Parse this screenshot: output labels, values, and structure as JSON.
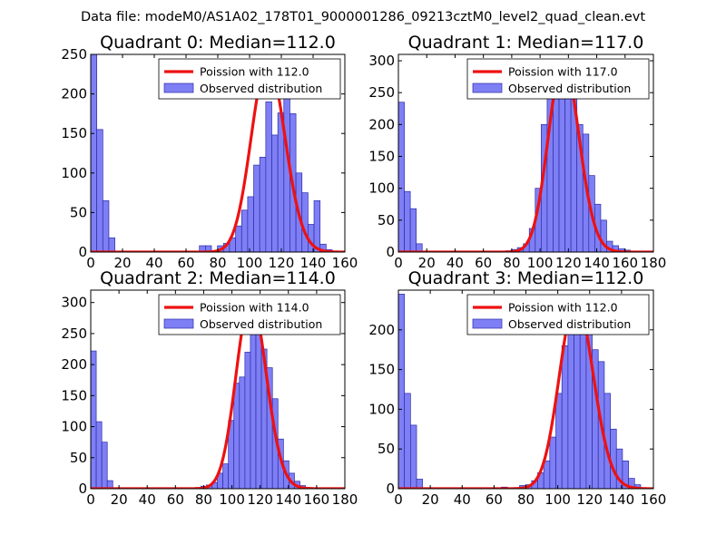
{
  "suptitle": "Data file: modeM0/AS1A02_178T01_9000001286_09213cztM0_level2_quad_clean.evt",
  "colors": {
    "bar_fill": "#7f7ff5",
    "bar_edge": "#2b2ba8",
    "curve": "#ee1111",
    "frame": "#000000"
  },
  "chart_data": [
    {
      "type": "bar",
      "title": "Quadrant 0: Median=112.0",
      "xlim": [
        0,
        160
      ],
      "ylim": [
        0,
        250
      ],
      "xticks": [
        0,
        20,
        40,
        60,
        80,
        100,
        120,
        140,
        160
      ],
      "yticks": [
        0,
        50,
        100,
        150,
        200,
        250
      ],
      "bin_width": 3.8,
      "bins": [
        {
          "x": 0,
          "y": 250
        },
        {
          "x": 3.8,
          "y": 155
        },
        {
          "x": 7.6,
          "y": 65
        },
        {
          "x": 11.4,
          "y": 18
        },
        {
          "x": 68.4,
          "y": 8
        },
        {
          "x": 72.2,
          "y": 8
        },
        {
          "x": 79.8,
          "y": 8
        },
        {
          "x": 83.6,
          "y": 11
        },
        {
          "x": 87.4,
          "y": 18
        },
        {
          "x": 91.2,
          "y": 33
        },
        {
          "x": 95,
          "y": 53
        },
        {
          "x": 98.8,
          "y": 70
        },
        {
          "x": 102.6,
          "y": 110
        },
        {
          "x": 106.4,
          "y": 120
        },
        {
          "x": 110.2,
          "y": 190
        },
        {
          "x": 114,
          "y": 148
        },
        {
          "x": 117.8,
          "y": 176
        },
        {
          "x": 121.6,
          "y": 200
        },
        {
          "x": 125.4,
          "y": 175
        },
        {
          "x": 129.2,
          "y": 100
        },
        {
          "x": 133,
          "y": 75
        },
        {
          "x": 136.8,
          "y": 35
        },
        {
          "x": 140.6,
          "y": 65
        },
        {
          "x": 144.4,
          "y": 10
        },
        {
          "x": 148.2,
          "y": 3
        }
      ],
      "poisson": {
        "mean": 112.0,
        "peak": 241
      },
      "legend": {
        "line_label": "Poission with 112.0",
        "bar_label": "Observed distribution",
        "position": "top-right"
      }
    },
    {
      "type": "bar",
      "title": "Quadrant 1: Median=117.0",
      "xlim": [
        0,
        180
      ],
      "ylim": [
        0,
        310
      ],
      "xticks": [
        0,
        20,
        40,
        60,
        80,
        100,
        120,
        140,
        160,
        180
      ],
      "yticks": [
        0,
        50,
        100,
        150,
        200,
        250,
        300
      ],
      "bin_width": 4.2,
      "bins": [
        {
          "x": 0,
          "y": 235
        },
        {
          "x": 4.2,
          "y": 95
        },
        {
          "x": 8.4,
          "y": 68
        },
        {
          "x": 12.6,
          "y": 13
        },
        {
          "x": 75.6,
          "y": 2
        },
        {
          "x": 79.8,
          "y": 4
        },
        {
          "x": 84,
          "y": 7
        },
        {
          "x": 88.2,
          "y": 13
        },
        {
          "x": 92.4,
          "y": 37
        },
        {
          "x": 96.6,
          "y": 100
        },
        {
          "x": 100.8,
          "y": 200
        },
        {
          "x": 105,
          "y": 250
        },
        {
          "x": 109.2,
          "y": 270
        },
        {
          "x": 113.4,
          "y": 300
        },
        {
          "x": 117.6,
          "y": 290
        },
        {
          "x": 121.8,
          "y": 265
        },
        {
          "x": 126,
          "y": 200
        },
        {
          "x": 130.2,
          "y": 185
        },
        {
          "x": 134.4,
          "y": 120
        },
        {
          "x": 138.6,
          "y": 75
        },
        {
          "x": 142.8,
          "y": 50
        },
        {
          "x": 147,
          "y": 17
        },
        {
          "x": 151.2,
          "y": 10
        },
        {
          "x": 155.4,
          "y": 5
        },
        {
          "x": 159.6,
          "y": 3
        }
      ],
      "poisson": {
        "mean": 117.0,
        "peak": 300
      },
      "legend": {
        "line_label": "Poission with 117.0",
        "bar_label": "Observed distribution",
        "position": "top-right"
      }
    },
    {
      "type": "bar",
      "title": "Quadrant 2: Median=114.0",
      "xlim": [
        0,
        180
      ],
      "ylim": [
        0,
        320
      ],
      "xticks": [
        0,
        20,
        40,
        60,
        80,
        100,
        120,
        140,
        160,
        180
      ],
      "yticks": [
        0,
        50,
        100,
        150,
        200,
        250,
        300
      ],
      "bin_width": 3.9,
      "bins": [
        {
          "x": 0,
          "y": 222
        },
        {
          "x": 3.9,
          "y": 108
        },
        {
          "x": 7.8,
          "y": 75
        },
        {
          "x": 11.7,
          "y": 13
        },
        {
          "x": 74.1,
          "y": 2
        },
        {
          "x": 78,
          "y": 4
        },
        {
          "x": 81.9,
          "y": 6
        },
        {
          "x": 85.8,
          "y": 10
        },
        {
          "x": 89.7,
          "y": 25
        },
        {
          "x": 93.6,
          "y": 40
        },
        {
          "x": 97.5,
          "y": 110
        },
        {
          "x": 101.4,
          "y": 170
        },
        {
          "x": 105.3,
          "y": 180
        },
        {
          "x": 109.2,
          "y": 220
        },
        {
          "x": 113.1,
          "y": 310
        },
        {
          "x": 117,
          "y": 265
        },
        {
          "x": 120.9,
          "y": 225
        },
        {
          "x": 124.8,
          "y": 195
        },
        {
          "x": 128.7,
          "y": 145
        },
        {
          "x": 132.6,
          "y": 80
        },
        {
          "x": 136.5,
          "y": 45
        },
        {
          "x": 140.4,
          "y": 25
        },
        {
          "x": 144.3,
          "y": 12
        },
        {
          "x": 148.2,
          "y": 5
        },
        {
          "x": 152.1,
          "y": 2
        }
      ],
      "poisson": {
        "mean": 114.0,
        "peak": 305
      },
      "legend": {
        "line_label": "Poission with 114.0",
        "bar_label": "Observed distribution",
        "position": "top-right"
      }
    },
    {
      "type": "bar",
      "title": "Quadrant 3: Median=112.0",
      "xlim": [
        0,
        160
      ],
      "ylim": [
        0,
        250
      ],
      "xticks": [
        0,
        20,
        40,
        60,
        80,
        100,
        120,
        140,
        160
      ],
      "yticks": [
        0,
        50,
        100,
        150,
        200
      ],
      "bin_width": 3.8,
      "bins": [
        {
          "x": 0,
          "y": 245
        },
        {
          "x": 3.8,
          "y": 120
        },
        {
          "x": 7.6,
          "y": 80
        },
        {
          "x": 11.4,
          "y": 12
        },
        {
          "x": 64.6,
          "y": 2
        },
        {
          "x": 76,
          "y": 4
        },
        {
          "x": 79.8,
          "y": 5
        },
        {
          "x": 83.6,
          "y": 10
        },
        {
          "x": 87.4,
          "y": 20
        },
        {
          "x": 91.2,
          "y": 35
        },
        {
          "x": 95,
          "y": 65
        },
        {
          "x": 98.8,
          "y": 120
        },
        {
          "x": 102.6,
          "y": 180
        },
        {
          "x": 106.4,
          "y": 220
        },
        {
          "x": 110.2,
          "y": 230
        },
        {
          "x": 114,
          "y": 225
        },
        {
          "x": 117.8,
          "y": 215
        },
        {
          "x": 121.6,
          "y": 175
        },
        {
          "x": 125.4,
          "y": 160
        },
        {
          "x": 129.2,
          "y": 120
        },
        {
          "x": 133,
          "y": 75
        },
        {
          "x": 136.8,
          "y": 50
        },
        {
          "x": 140.6,
          "y": 35
        },
        {
          "x": 144.4,
          "y": 13
        },
        {
          "x": 148.2,
          "y": 5
        }
      ],
      "poisson": {
        "mean": 112.0,
        "peak": 237
      },
      "legend": {
        "line_label": "Poission with 112.0",
        "bar_label": "Observed distribution",
        "position": "top-right"
      }
    }
  ]
}
